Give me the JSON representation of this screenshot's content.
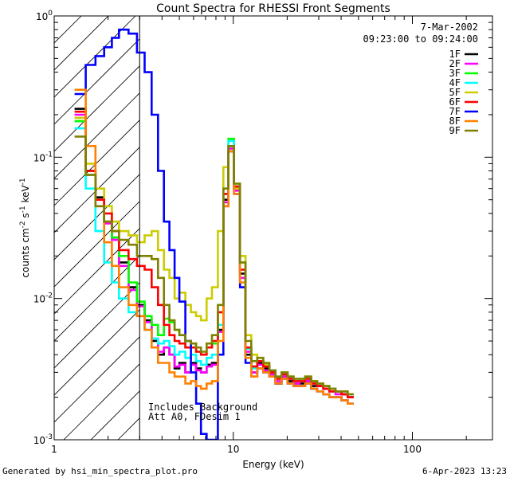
{
  "chart_data": {
    "type": "line",
    "title": "Count Spectra for RHESSI Front Segments",
    "xlabel": "Energy (keV)",
    "ylabel_parts": [
      "counts cm",
      "-2",
      " s",
      "-1",
      " keV",
      "-1"
    ],
    "x_scale": "log",
    "y_scale": "log",
    "xlim": [
      1,
      280
    ],
    "ylim": [
      0.001,
      1.0
    ],
    "x_ticks": [
      {
        "value": 1,
        "label": "1"
      },
      {
        "value": 10,
        "label": "10"
      },
      {
        "value": 100,
        "label": "100"
      }
    ],
    "y_ticks": [
      {
        "value": 1,
        "base": "10",
        "exp": "0"
      },
      {
        "value": 0.1,
        "base": "10",
        "exp": "-1"
      },
      {
        "value": 0.01,
        "base": "10",
        "exp": "-2"
      },
      {
        "value": 0.001,
        "base": "10",
        "exp": "-3"
      }
    ],
    "date_label": "7-Mar-2002",
    "time_range_label": "09:23:00 to 09:24:00",
    "hatch_region_x": [
      1,
      3
    ],
    "annotation_lines": [
      "Includes Background",
      "Att A0, FDesim 1"
    ],
    "series": [
      {
        "name": "1F",
        "color": "#000000",
        "values": [
          0.22,
          0.08,
          0.052,
          0.035,
          0.027,
          0.018,
          0.012,
          0.009,
          0.007,
          0.005,
          0.004,
          0.0045,
          0.004,
          0.0032,
          0.0035,
          0.003,
          0.0035,
          0.0032,
          0.003,
          0.0034,
          0.0035,
          0.006,
          0.05,
          0.12,
          0.06,
          0.015,
          0.004,
          0.003,
          0.0035,
          0.0032,
          0.003,
          0.0025,
          0.0028,
          0.0026,
          0.0025,
          0.0025,
          0.0026,
          0.0024,
          0.0024,
          0.0023,
          0.0022,
          0.0022,
          0.0021,
          0.002
        ]
      },
      {
        "name": "2F",
        "color": "#ff00ff",
        "values": [
          0.2,
          0.075,
          0.05,
          0.034,
          0.026,
          0.017,
          0.0115,
          0.0088,
          0.0068,
          0.0052,
          0.0042,
          0.0045,
          0.004,
          0.0033,
          0.0034,
          0.003,
          0.0034,
          0.0031,
          0.003,
          0.0033,
          0.0034,
          0.0058,
          0.048,
          0.115,
          0.058,
          0.014,
          0.0042,
          0.003,
          0.0034,
          0.0031,
          0.0029,
          0.0026,
          0.0028,
          0.0027,
          0.0025,
          0.0026,
          0.0026,
          0.0025,
          0.0024,
          0.0023,
          0.0022,
          0.0021,
          0.0021,
          0.002
        ]
      },
      {
        "name": "3F",
        "color": "#00ff00",
        "values": [
          0.18,
          0.075,
          0.05,
          0.035,
          0.027,
          0.02,
          0.013,
          0.0095,
          0.0075,
          0.0065,
          0.0055,
          0.0072,
          0.0068,
          0.006,
          0.0055,
          0.0045,
          0.0048,
          0.0042,
          0.004,
          0.0045,
          0.0048,
          0.008,
          0.06,
          0.135,
          0.065,
          0.018,
          0.0045,
          0.0033,
          0.0036,
          0.0033,
          0.003,
          0.0027,
          0.003,
          0.0028,
          0.0027,
          0.0027,
          0.0028,
          0.0026,
          0.0025,
          0.0024,
          0.0023,
          0.0022,
          0.0022,
          0.0021
        ]
      },
      {
        "name": "4F",
        "color": "#00ffff",
        "values": [
          0.16,
          0.06,
          0.03,
          0.018,
          0.013,
          0.01,
          0.008,
          0.0075,
          0.006,
          0.0052,
          0.0048,
          0.005,
          0.0046,
          0.004,
          0.0042,
          0.0038,
          0.004,
          0.0036,
          0.0034,
          0.0038,
          0.004,
          0.0065,
          0.055,
          0.13,
          0.062,
          0.016,
          0.0044,
          0.0032,
          0.0036,
          0.0034,
          0.0031,
          0.0028,
          0.003,
          0.0028,
          0.0026,
          0.0026,
          0.0027,
          0.0026,
          0.0025,
          0.0024,
          0.0023,
          0.0022,
          0.0022,
          0.0021
        ]
      },
      {
        "name": "5F",
        "color": "#cccc00",
        "values": [
          0.19,
          0.09,
          0.06,
          0.045,
          0.035,
          0.03,
          0.028,
          0.025,
          0.028,
          0.03,
          0.022,
          0.016,
          0.014,
          0.01,
          0.011,
          0.009,
          0.008,
          0.0075,
          0.007,
          0.01,
          0.012,
          0.03,
          0.085,
          0.11,
          0.06,
          0.02,
          0.0055,
          0.004,
          0.0036,
          0.0034,
          0.003,
          0.0028,
          0.003,
          0.0028,
          0.0027,
          0.0027,
          0.0028,
          0.0026,
          0.0025,
          0.0024,
          0.0023,
          0.0022,
          0.0022,
          0.0021
        ]
      },
      {
        "name": "6F",
        "color": "#ff0000",
        "values": [
          0.21,
          0.08,
          0.05,
          0.04,
          0.03,
          0.022,
          0.019,
          0.017,
          0.016,
          0.012,
          0.009,
          0.0065,
          0.0055,
          0.005,
          0.0048,
          0.0045,
          0.0045,
          0.0042,
          0.004,
          0.0045,
          0.005,
          0.008,
          0.055,
          0.12,
          0.062,
          0.016,
          0.0045,
          0.0033,
          0.0036,
          0.0033,
          0.003,
          0.0027,
          0.0029,
          0.0027,
          0.0026,
          0.0026,
          0.0027,
          0.0025,
          0.0024,
          0.0023,
          0.0022,
          0.0022,
          0.0021,
          0.002
        ]
      },
      {
        "name": "7F",
        "color": "#0000ff",
        "values": [
          0.28,
          0.45,
          0.52,
          0.6,
          0.7,
          0.8,
          0.75,
          0.55,
          0.4,
          0.2,
          0.08,
          0.035,
          0.022,
          0.014,
          0.0095,
          0.005,
          0.003,
          0.0018,
          0.0011,
          0.001,
          0.001,
          0.004,
          0.045,
          0.11,
          0.055,
          0.012,
          0.0035,
          0.0028,
          0.0032,
          0.003,
          0.0028,
          0.0025,
          0.0027,
          0.0025,
          0.0024,
          0.0024,
          0.0025,
          0.0023,
          0.0022,
          0.0021,
          0.002,
          0.002,
          0.0019,
          0.0018
        ]
      },
      {
        "name": "8F",
        "color": "#ff8000",
        "values": [
          0.3,
          0.12,
          0.045,
          0.025,
          0.017,
          0.012,
          0.009,
          0.0075,
          0.006,
          0.0045,
          0.0035,
          0.0035,
          0.003,
          0.0028,
          0.0028,
          0.0025,
          0.0026,
          0.0024,
          0.0023,
          0.0025,
          0.0026,
          0.005,
          0.045,
          0.11,
          0.055,
          0.013,
          0.0038,
          0.0028,
          0.0032,
          0.003,
          0.0028,
          0.0025,
          0.0027,
          0.0025,
          0.0024,
          0.0024,
          0.0025,
          0.0023,
          0.0022,
          0.0021,
          0.002,
          0.002,
          0.0019,
          0.0018
        ]
      },
      {
        "name": "9F",
        "color": "#808000",
        "values": [
          0.14,
          0.075,
          0.045,
          0.035,
          0.03,
          0.026,
          0.024,
          0.02,
          0.02,
          0.019,
          0.014,
          0.009,
          0.007,
          0.006,
          0.0055,
          0.005,
          0.0048,
          0.0045,
          0.0042,
          0.0048,
          0.0055,
          0.009,
          0.06,
          0.12,
          0.065,
          0.018,
          0.005,
          0.0036,
          0.0038,
          0.0035,
          0.0031,
          0.0028,
          0.003,
          0.0028,
          0.0027,
          0.0027,
          0.0028,
          0.0026,
          0.0025,
          0.0024,
          0.0023,
          0.0022,
          0.0022,
          0.0021
        ]
      }
    ],
    "x": [
      1.3,
      1.5,
      1.7,
      1.9,
      2.1,
      2.3,
      2.6,
      2.9,
      3.2,
      3.5,
      3.8,
      4.1,
      4.4,
      4.7,
      5.0,
      5.4,
      5.8,
      6.2,
      6.6,
      7.1,
      7.6,
      8.2,
      8.8,
      9.4,
      10.1,
      10.9,
      11.7,
      12.6,
      13.6,
      14.7,
      15.9,
      17.2,
      18.6,
      20.1,
      21.7,
      23.4,
      25.2,
      27.2,
      29.4,
      31.8,
      34.4,
      37.2,
      40.2,
      43.5
    ],
    "legend_position": "top-right"
  },
  "footer": {
    "generated_by": "Generated by hsi_min_spectra_plot.pro",
    "timestamp": "6-Apr-2023 13:23"
  }
}
